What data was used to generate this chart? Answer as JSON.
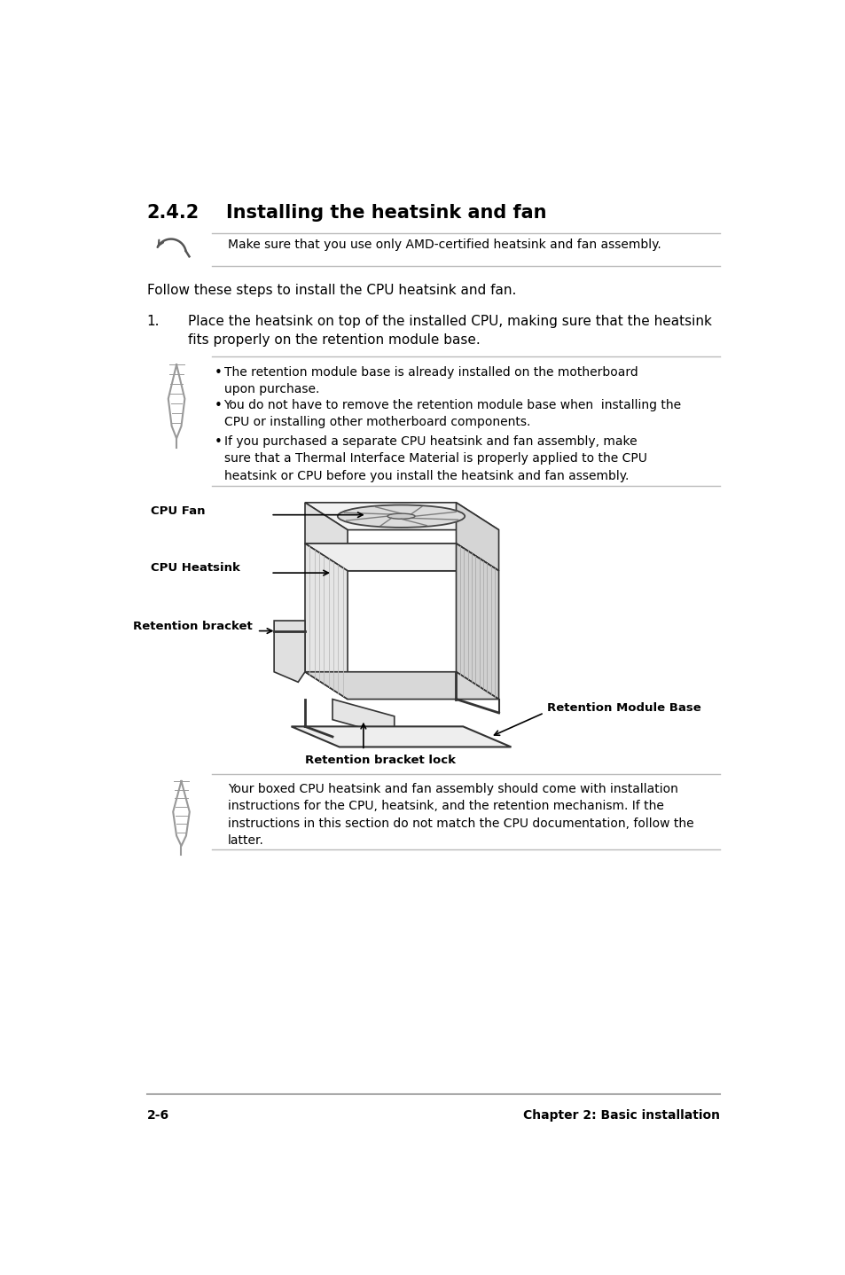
{
  "bg_color": "#ffffff",
  "title_number": "2.4.2",
  "title_text": "Installing the heatsink and fan",
  "note1_text": "Make sure that you use only AMD-certified heatsink and fan assembly.",
  "follow_text": "Follow these steps to install the CPU heatsink and fan.",
  "step1_num": "1.",
  "step1_text": "Place the heatsink on top of the installed CPU, making sure that the heatsink\nfits properly on the retention module base.",
  "bullet1": "The retention module base is already installed on the motherboard\nupon purchase.",
  "bullet2": "You do not have to remove the retention module base when  installing the\nCPU or installing other motherboard components.",
  "bullet3": "If you purchased a separate CPU heatsink and fan assembly, make\nsure that a Thermal Interface Material is properly applied to the CPU\nheatsink or CPU before you install the heatsink and fan assembly.",
  "label_cpu_fan": "CPU Fan",
  "label_cpu_heatsink": "CPU Heatsink",
  "label_retention_bracket": "Retention bracket",
  "label_retention_module_base": "Retention Module Base",
  "label_retention_bracket_lock": "Retention bracket lock",
  "note2_text": "Your boxed CPU heatsink and fan assembly should come with installation\ninstructions for the CPU, heatsink, and the retention mechanism. If the\ninstructions in this section do not match the CPU documentation, follow the\nlatter.",
  "footer_left": "2-6",
  "footer_right": "Chapter 2: Basic installation"
}
